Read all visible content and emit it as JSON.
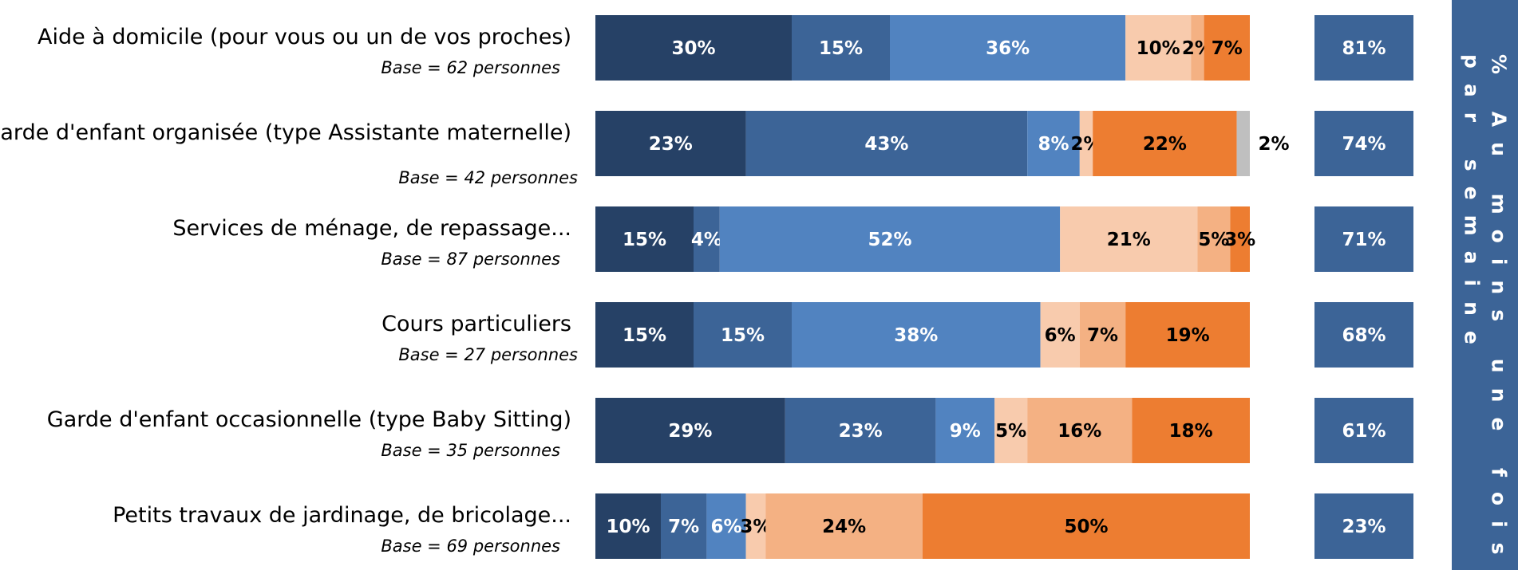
{
  "chart_data": {
    "type": "bar",
    "orientation": "horizontal-stacked-100",
    "categories": [
      {
        "label": "Aide à domicile (pour vous ou un de vos proches)",
        "base": "Base = 62 personnes"
      },
      {
        "label": "Garde d'enfant organisée (type Assistante maternelle)",
        "base": "Base = 42 personnes"
      },
      {
        "label": "Services de ménage, de repassage...",
        "base": "Base = 87 personnes"
      },
      {
        "label": "Cours particuliers",
        "base": "Base = 27 personnes"
      },
      {
        "label": "Garde d'enfant occasionnelle (type Baby Sitting)",
        "base": "Base = 35 personnes"
      },
      {
        "label": "Petits travaux de jardinage, de bricolage...",
        "base": "Base = 69 personnes"
      }
    ],
    "series": [
      {
        "color": "#264166",
        "values": [
          30,
          23,
          15,
          15,
          29,
          10
        ],
        "labels": [
          "30%",
          "23%",
          "15%",
          "15%",
          "29%",
          "10%"
        ],
        "label_color": "#ffffff"
      },
      {
        "color": "#3c6497",
        "values": [
          15,
          43,
          4,
          15,
          23,
          7
        ],
        "labels": [
          "15%",
          "43%",
          "4%",
          "15%",
          "23%",
          "7%"
        ],
        "label_color": "#ffffff"
      },
      {
        "color": "#5183c0",
        "values": [
          36,
          8,
          52,
          38,
          9,
          6
        ],
        "labels": [
          "36%",
          "8%",
          "52%",
          "38%",
          "9%",
          "6%"
        ],
        "label_color": "#ffffff"
      },
      {
        "color": "#f8cbad",
        "values": [
          10,
          2,
          21,
          6,
          5,
          3
        ],
        "labels": [
          "10%",
          "2%",
          "21%",
          "6%",
          "5%",
          "3%"
        ],
        "label_color": "#000000"
      },
      {
        "color": "#f4b183",
        "values": [
          2,
          0,
          5,
          7,
          16,
          24
        ],
        "labels": [
          "2%",
          "",
          "5%",
          "7%",
          "16%",
          "24%"
        ],
        "label_color": "#000000"
      },
      {
        "color": "#ed7d31",
        "values": [
          7,
          22,
          3,
          19,
          18,
          50
        ],
        "labels": [
          "7%",
          "22%",
          "3%",
          "19%",
          "18%",
          "50%"
        ],
        "label_color": "#000000"
      },
      {
        "color": "#bfbfbf",
        "values": [
          0,
          2,
          0,
          0,
          0,
          0
        ],
        "labels": [
          "",
          "2%",
          "",
          "",
          "",
          ""
        ],
        "label_color": "#000000"
      }
    ],
    "totals": {
      "color": "#3c6497",
      "values": [
        81,
        74,
        71,
        68,
        61,
        23
      ],
      "labels": [
        "81%",
        "74%",
        "71%",
        "68%",
        "61%",
        "23%"
      ]
    },
    "xlim": [
      0,
      100
    ],
    "legend": "none",
    "grid": false
  },
  "side_panel": {
    "title": "% Au moins une fois par semaine"
  }
}
